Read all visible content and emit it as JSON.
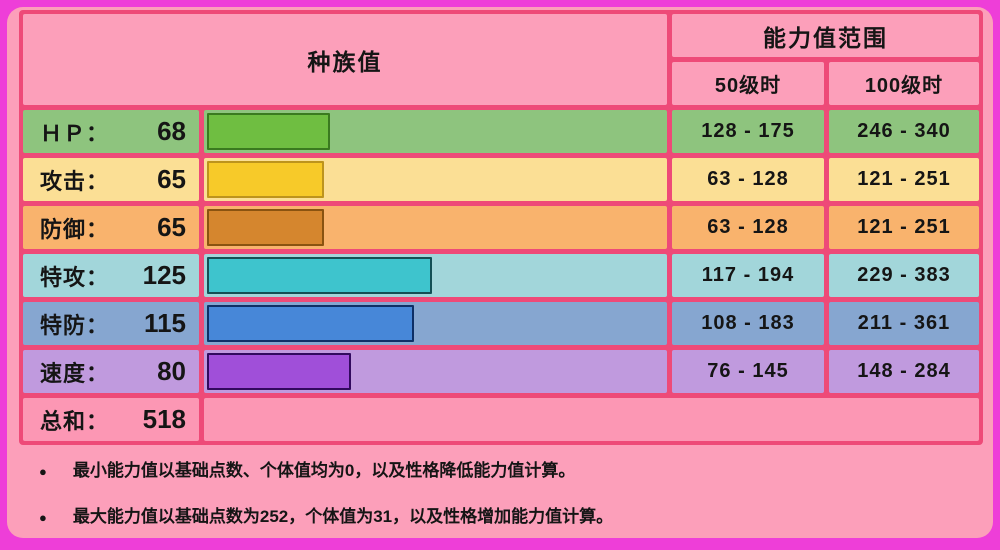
{
  "header": {
    "base_stats_label": "种族值",
    "range_label": "能力值范围",
    "lv50_label": "50级时",
    "lv100_label": "100级时"
  },
  "stats": {
    "max_stat": 255,
    "rows": [
      {
        "id": "hp",
        "label": "ＨＰ：",
        "value": 68,
        "lv50_range": "128 - 175",
        "lv100_range": "246 - 340",
        "colors": {
          "cell": "#8ec47e",
          "bar": "#6fbe41",
          "bar_border": "#3a7a1f"
        }
      },
      {
        "id": "attack",
        "label": "攻击：",
        "value": 65,
        "lv50_range": "63 - 128",
        "lv100_range": "121 - 251",
        "colors": {
          "cell": "#fbdf95",
          "bar": "#f7ca29",
          "bar_border": "#bd941c"
        }
      },
      {
        "id": "defense",
        "label": "防御：",
        "value": 65,
        "lv50_range": "63 - 128",
        "lv100_range": "121 - 251",
        "colors": {
          "cell": "#f9b36d",
          "bar": "#d5862e",
          "bar_border": "#8a5310"
        }
      },
      {
        "id": "sp-attack",
        "label": "特攻：",
        "value": 125,
        "lv50_range": "117 - 194",
        "lv100_range": "229 - 383",
        "colors": {
          "cell": "#a2d6da",
          "bar": "#3ec4cd",
          "bar_border": "#135055"
        }
      },
      {
        "id": "sp-defense",
        "label": "特防：",
        "value": 115,
        "lv50_range": "108 - 183",
        "lv100_range": "211 - 361",
        "colors": {
          "cell": "#86a6d0",
          "bar": "#4787d8",
          "bar_border": "#0e2f66"
        }
      },
      {
        "id": "speed",
        "label": "速度：",
        "value": 80,
        "lv50_range": "76 - 145",
        "lv100_range": "148 - 284",
        "colors": {
          "cell": "#c09ade",
          "bar": "#a04fd9",
          "bar_border": "#320a5e"
        }
      }
    ],
    "total": {
      "label": "总和：",
      "value": 518
    }
  },
  "notes": [
    {
      "bullet": "●",
      "text": "最小能力值以基础点数、个体值均为0，以及性格降低能力值计算。"
    },
    {
      "bullet": "●",
      "text": "最大能力值以基础点数为252，个体值为31，以及性格增加能力值计算。"
    }
  ],
  "colors": {
    "page_background": "#ee3ed8",
    "panel_background": "#fc9fba",
    "grid_line": "#ee4a78",
    "header_cell": "#fc9fba",
    "total_row": "#fc97b4",
    "text": "#151515"
  },
  "chart_data": {
    "type": "bar",
    "title": "种族值",
    "categories": [
      "ＨＰ",
      "攻击",
      "防御",
      "特攻",
      "特防",
      "速度"
    ],
    "values": [
      68,
      65,
      65,
      125,
      115,
      80
    ],
    "total": 518,
    "xlim": [
      0,
      255
    ],
    "series": [
      {
        "name": "50级时",
        "values": [
          "128 - 175",
          "63 - 128",
          "63 - 128",
          "117 - 194",
          "108 - 183",
          "76 - 145"
        ]
      },
      {
        "name": "100级时",
        "values": [
          "246 - 340",
          "121 - 251",
          "121 - 251",
          "229 - 383",
          "211 - 361",
          "148 - 284"
        ]
      }
    ]
  }
}
